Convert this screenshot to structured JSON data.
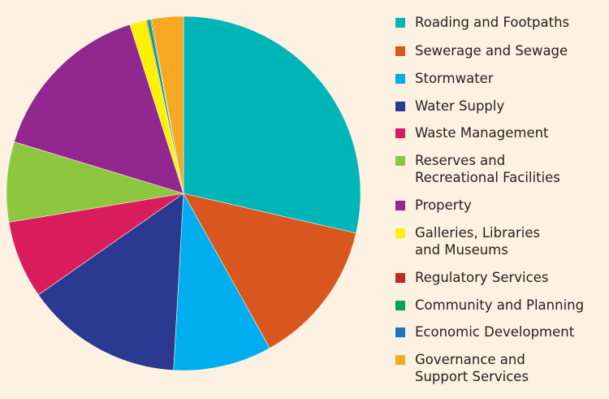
{
  "chart_data": {
    "type": "pie",
    "start": "12 o'clock",
    "direction": "clockwise",
    "legend_position": "right",
    "slices": [
      {
        "label": "Roading and Footpaths",
        "value": 28.6,
        "color": "#00b5b8"
      },
      {
        "label": "Sewerage and Sewage",
        "value": 13.3,
        "color": "#d9561e"
      },
      {
        "label": "Stormwater",
        "value": 9.0,
        "color": "#00aeef"
      },
      {
        "label": "Water Supply",
        "value": 14.4,
        "color": "#2b3990"
      },
      {
        "label": "Waste Management",
        "value": 7.1,
        "color": "#d91c5c"
      },
      {
        "label": "Reserves and\nRecreational Facilities",
        "value": 7.3,
        "color": "#8dc63f"
      },
      {
        "label": "Property",
        "value": 15.4,
        "color": "#92278f"
      },
      {
        "label": "Galleries, Libraries\nand Museums",
        "value": 1.5,
        "color": "#fff200"
      },
      {
        "label": "Regulatory Services",
        "value": 0.1,
        "color": "#c1272d"
      },
      {
        "label": "Community and Planning",
        "value": 0.3,
        "color": "#00a651"
      },
      {
        "label": "Economic Development",
        "value": 0.1,
        "color": "#1c75bc"
      },
      {
        "label": "Governance and\nSupport Services",
        "value": 2.9,
        "color": "#f7a823"
      }
    ]
  }
}
